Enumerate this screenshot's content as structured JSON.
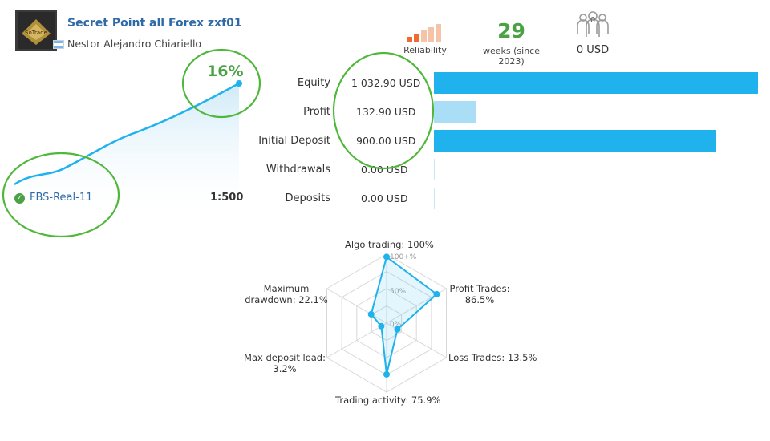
{
  "header": {
    "title": "Secret Point all Forex zxf01",
    "author": "Nestor Alejandro Chiariello",
    "avatar_icon": "trading-logo-icon",
    "avatar_text": "SoTrade",
    "flag_icon": "argentina-flag-icon"
  },
  "stats": {
    "reliability_label": "Reliability",
    "reliability_bars_filled": 2,
    "reliability_bars_total": 5,
    "weeks_value": "29",
    "weeks_label": "weeks (since 2023)",
    "subscribers_count": "0",
    "subscribers_icon": "subscribers-icon",
    "subscribers_usd": "0 USD"
  },
  "growth": {
    "percent": "16%",
    "server": "FBS-Real-11",
    "server_icon": "check-icon",
    "leverage": "1:500"
  },
  "finance": [
    {
      "label": "Equity",
      "value": "1 032.90 USD",
      "amount": 1032.9
    },
    {
      "label": "Profit",
      "value": "132.90 USD",
      "amount": 132.9
    },
    {
      "label": "Initial Deposit",
      "value": "900.00 USD",
      "amount": 900.0
    },
    {
      "label": "Withdrawals",
      "value": "0.00 USD",
      "amount": 0
    },
    {
      "label": "Deposits",
      "value": "0.00 USD",
      "amount": 0
    }
  ],
  "radar": {
    "scale_labels": [
      "100+%",
      "50%",
      "0%"
    ],
    "metrics": [
      {
        "name": "Algo trading",
        "label_line1": "Algo trading: 100%",
        "label_line2": "",
        "value": 100
      },
      {
        "name": "Profit Trades",
        "label_line1": "Profit Trades:",
        "label_line2": "86.5%",
        "value": 86.5
      },
      {
        "name": "Loss Trades",
        "label_line1": "Loss Trades: 13.5%",
        "label_line2": "",
        "value": 13.5
      },
      {
        "name": "Trading activity",
        "label_line1": "Trading activity: 75.9%",
        "label_line2": "",
        "value": 75.9
      },
      {
        "name": "Max deposit load",
        "label_line1": "Max deposit load:",
        "label_line2": "3.2%",
        "value": 3.2
      },
      {
        "name": "Maximum drawdown",
        "label_line1": "Maximum",
        "label_line2": "drawdown: 22.1%",
        "value": 22.1
      }
    ]
  },
  "colors": {
    "accent_blue": "#1fb2ec",
    "light_blue": "#a9def6",
    "green": "#4aa245",
    "annotation_green": "#4fb83a",
    "reliability_orange": "#f26b2e",
    "reliability_faded": "#f5c4a8"
  }
}
